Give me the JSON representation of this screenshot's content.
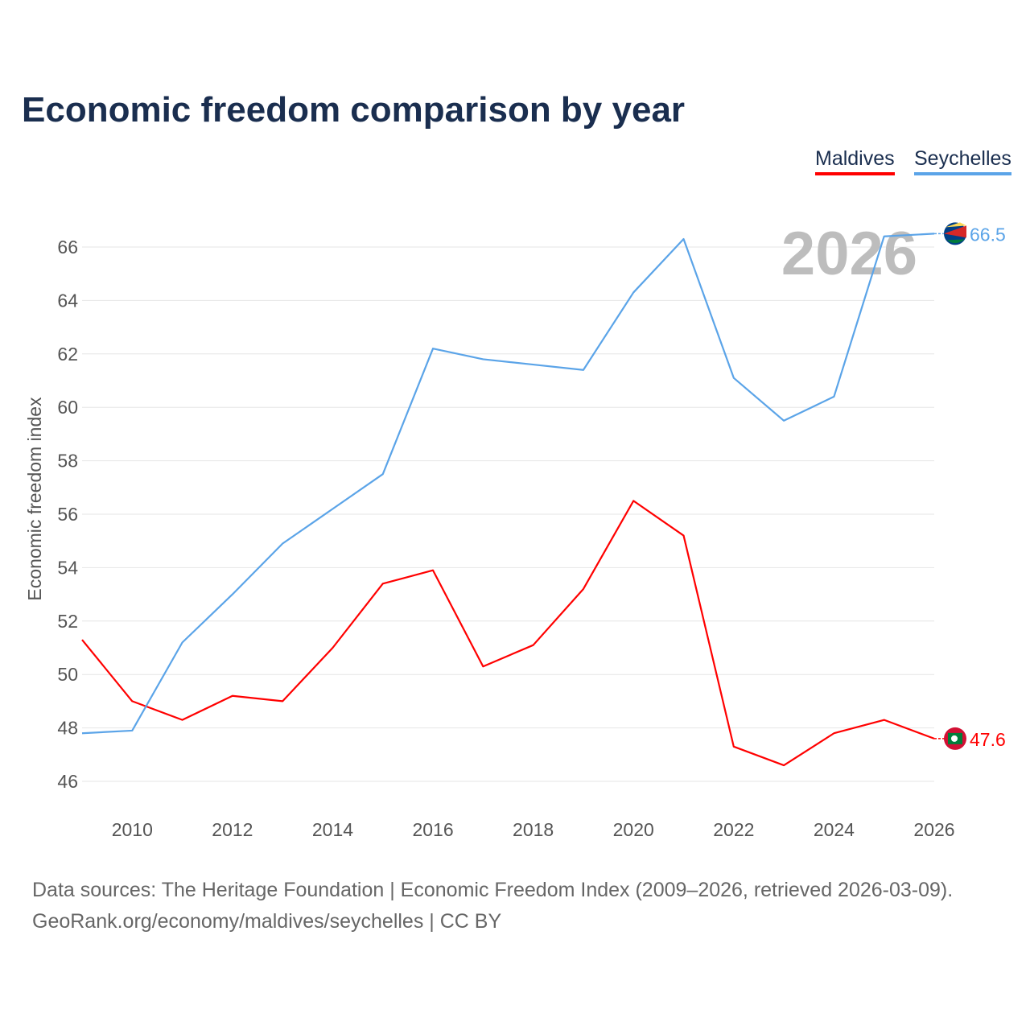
{
  "chart_data": {
    "type": "line",
    "title": "Economic freedom comparison by year",
    "xlabel": "",
    "ylabel": "Economic freedom index",
    "x": [
      2009,
      2010,
      2011,
      2012,
      2013,
      2014,
      2015,
      2016,
      2017,
      2018,
      2019,
      2020,
      2021,
      2022,
      2023,
      2024,
      2025,
      2026
    ],
    "xlim": [
      2009,
      2026
    ],
    "ylim": [
      45,
      67
    ],
    "xticks": [
      "2010",
      "2012",
      "2014",
      "2016",
      "2018",
      "2020",
      "2022",
      "2024",
      "2026"
    ],
    "yticks": [
      "46",
      "48",
      "50",
      "52",
      "54",
      "56",
      "58",
      "60",
      "62",
      "64",
      "66"
    ],
    "grid": true,
    "legend_placement": "top-right",
    "watermark_year": "2026",
    "series": [
      {
        "name": "Maldives",
        "color": "#ff0000",
        "end_label": "47.6",
        "values": [
          51.3,
          49.0,
          48.3,
          49.2,
          49.0,
          51.0,
          53.4,
          53.9,
          50.3,
          51.1,
          53.2,
          56.5,
          55.2,
          47.3,
          46.6,
          47.8,
          48.3,
          47.6
        ]
      },
      {
        "name": "Seychelles",
        "color": "#5ba4e8",
        "end_label": "66.5",
        "values": [
          47.8,
          47.9,
          51.2,
          53.0,
          54.9,
          56.2,
          57.5,
          62.2,
          61.8,
          61.6,
          61.4,
          64.3,
          66.3,
          61.1,
          59.5,
          60.4,
          66.4,
          66.5
        ]
      }
    ]
  },
  "source": {
    "line1": "Data sources: The Heritage Foundation | Economic Freedom Index (2009–2026, retrieved 2026-03-09).",
    "line2": "GeoRank.org/economy/maldives/seychelles | CC BY"
  }
}
